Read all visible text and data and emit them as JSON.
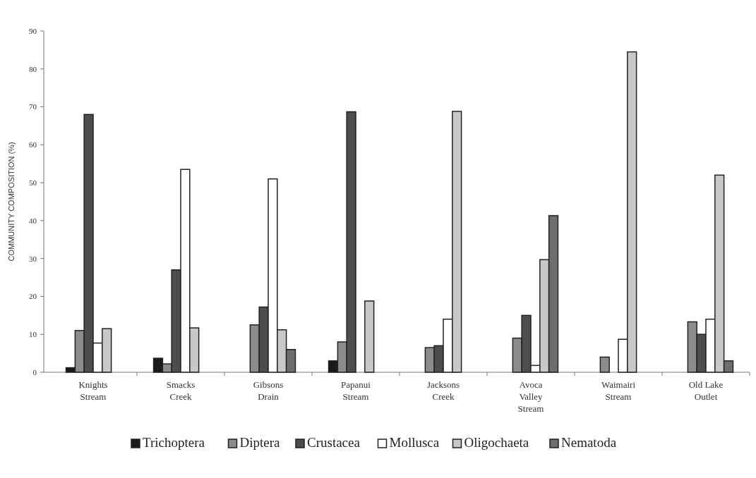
{
  "chart_data": {
    "type": "bar",
    "ylabel": "COMMUNITY COMPOSITION (%)",
    "categories": [
      "Knights Stream",
      "Smacks Creek",
      "Gibsons Drain",
      "Papanui Stream",
      "Jacksons Creek",
      "Avoca Valley Stream",
      "Waimairi Stream",
      "Old Lake Outlet"
    ],
    "series": [
      {
        "name": "Trichoptera",
        "color": "#1a1a1a",
        "values": [
          1.2,
          3.7,
          0,
          3,
          0,
          0,
          0,
          0
        ]
      },
      {
        "name": "Diptera",
        "color": "#8c8c8c",
        "values": [
          11,
          2.2,
          12.5,
          8,
          6.5,
          9,
          4,
          13.3
        ]
      },
      {
        "name": "Crustacea",
        "color": "#4d4d4d",
        "values": [
          68,
          27,
          17.2,
          68.7,
          7,
          15,
          0,
          10
        ]
      },
      {
        "name": "Mollusca",
        "color": "#ffffff",
        "values": [
          7.7,
          53.5,
          51,
          0,
          14,
          1.8,
          8.7,
          14
        ]
      },
      {
        "name": "Oligochaeta",
        "color": "#c8c8c8",
        "values": [
          11.5,
          11.7,
          11.2,
          18.8,
          68.8,
          29.7,
          84.5,
          52
        ]
      },
      {
        "name": "Nematoda",
        "color": "#6e6e6e",
        "values": [
          0,
          0,
          6,
          0,
          0,
          41.3,
          0,
          3
        ]
      }
    ],
    "ylim": [
      0,
      90
    ],
    "yticks": [
      0,
      10,
      20,
      30,
      40,
      50,
      60,
      70,
      80,
      90
    ],
    "grid": false,
    "legend": "bottom"
  }
}
